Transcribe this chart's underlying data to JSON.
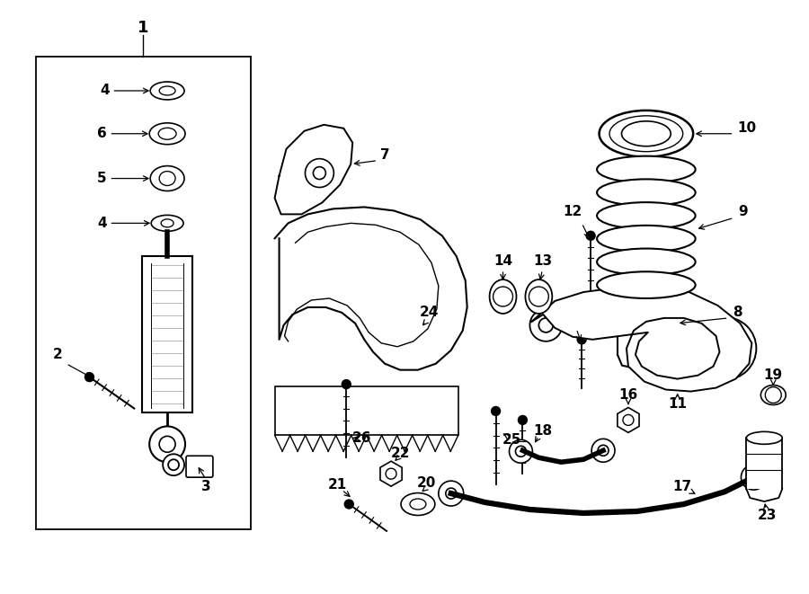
{
  "bg_color": "#ffffff",
  "line_color": "#000000",
  "figsize": [
    9.0,
    6.61
  ],
  "dpi": 100,
  "title_fontsize": 11,
  "label_fontsize": 11
}
